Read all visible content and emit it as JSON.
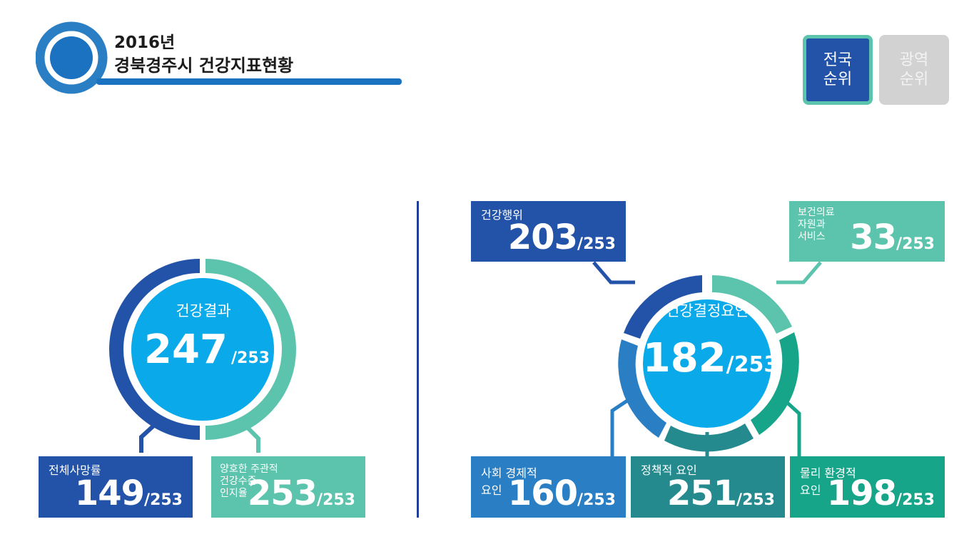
{
  "header": {
    "year": "2016년",
    "title": "경북경주시 건강지표현황"
  },
  "rank_toggle": {
    "national": {
      "line1": "전국",
      "line2": "순위",
      "active": true
    },
    "regional": {
      "line1": "광역",
      "line2": "순위",
      "active": false
    }
  },
  "colors": {
    "dark_blue": "#2253a8",
    "mint": "#5cc4ad",
    "mid_blue": "#2a7fc4",
    "teal": "#248a8e",
    "green": "#17a58a",
    "circle_fill": "#0aa9ea"
  },
  "health_outcome": {
    "label": "건강결과",
    "rank": "247",
    "total": "/253",
    "items": [
      {
        "label": "전체사망률",
        "rank": "149",
        "total": "/253"
      },
      {
        "label_lines": [
          "양호한 주관적",
          "건강수준",
          "인지율"
        ],
        "rank": "253",
        "total": "/253"
      }
    ]
  },
  "health_determinants": {
    "label": "건강결정요인",
    "rank": "182",
    "total": "/253",
    "items": [
      {
        "label": "건강행위",
        "rank": "203",
        "total": "/253"
      },
      {
        "label_lines": [
          "보건의료",
          "자원과",
          "서비스"
        ],
        "rank": "33",
        "total": "/253"
      },
      {
        "label_lines": [
          "사회 경제적",
          "요인"
        ],
        "rank": "160",
        "total": "/253"
      },
      {
        "label": "정책적 요인",
        "rank": "251",
        "total": "/253"
      },
      {
        "label_lines": [
          "물리 환경적",
          "요인"
        ],
        "rank": "198",
        "total": "/253"
      }
    ]
  }
}
